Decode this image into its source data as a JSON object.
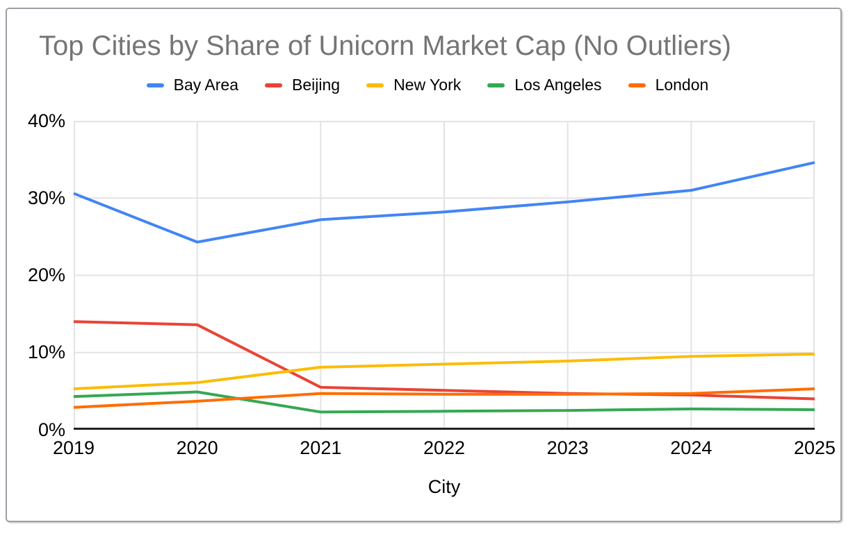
{
  "frame": {
    "border_color": "#9aa0a6",
    "background": "#ffffff"
  },
  "chart_data": {
    "type": "line",
    "title": "Top Cities by Share of Unicorn Market Cap (No Outliers)",
    "title_color": "#757575",
    "xlabel": "City",
    "ylabel": "",
    "categories": [
      "2019",
      "2020",
      "2021",
      "2022",
      "2023",
      "2024",
      "2025"
    ],
    "series": [
      {
        "name": "Bay Area",
        "color": "#4285F4",
        "values": [
          30.6,
          24.3,
          27.2,
          28.2,
          29.5,
          31.0,
          34.6
        ]
      },
      {
        "name": "Beijing",
        "color": "#EA4335",
        "values": [
          14.0,
          13.6,
          5.5,
          5.1,
          4.7,
          4.5,
          4.0
        ]
      },
      {
        "name": "New York",
        "color": "#FBBC04",
        "values": [
          5.3,
          6.1,
          8.1,
          8.5,
          8.9,
          9.5,
          9.8
        ]
      },
      {
        "name": "Los Angeles",
        "color": "#34A853",
        "values": [
          4.3,
          4.9,
          2.3,
          2.4,
          2.5,
          2.7,
          2.6
        ]
      },
      {
        "name": "London",
        "color": "#FF6D01",
        "values": [
          2.9,
          3.7,
          4.7,
          4.6,
          4.6,
          4.7,
          5.3
        ]
      }
    ],
    "ylim": [
      0,
      40
    ],
    "y_ticks": [
      {
        "value": 0,
        "label": "0%"
      },
      {
        "value": 10,
        "label": "10%"
      },
      {
        "value": 20,
        "label": "20%"
      },
      {
        "value": 30,
        "label": "30%"
      },
      {
        "value": 40,
        "label": "40%"
      }
    ],
    "grid": true,
    "grid_color": "#e3e3e3",
    "axis_color": "#212121",
    "legend_position": "top",
    "line_width": 4
  }
}
